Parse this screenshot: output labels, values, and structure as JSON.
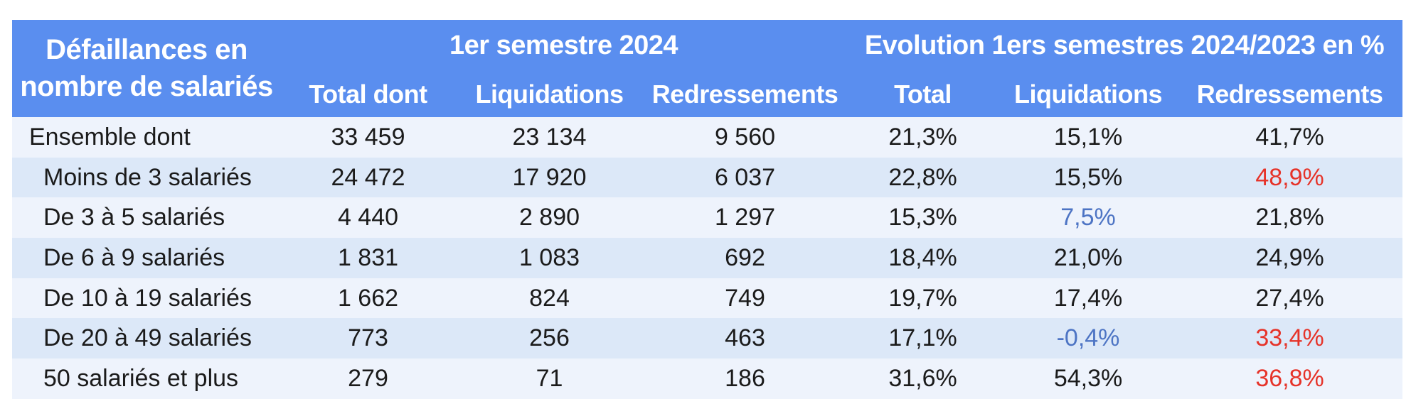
{
  "colors": {
    "header_bg": "#5a8eef",
    "header_text": "#ffffff",
    "row_light": "#eef3fc",
    "row_dark": "#dce8f8",
    "body_text": "#1b1b1b",
    "negative_highlight_red": "#e63329",
    "positive_highlight_blue": "#4d74c4"
  },
  "table": {
    "corner_title": "Défaillances en nombre de salariés",
    "groups": [
      {
        "label": "1er semestre 2024",
        "columns": [
          "Total dont",
          "Liquidations",
          "Redressements"
        ]
      },
      {
        "label": "Evolution 1ers semestres 2024/2023 en %",
        "columns": [
          "Total",
          "Liquidations",
          "Redressements"
        ]
      }
    ],
    "rows": [
      {
        "label": "Ensemble dont",
        "indent": false,
        "values": [
          "33 459",
          "23 134",
          "9 560",
          "21,3%",
          "15,1%",
          "41,7%"
        ],
        "value_colors": [
          "",
          "",
          "",
          "",
          "",
          ""
        ]
      },
      {
        "label": "Moins de 3 salariés",
        "indent": true,
        "values": [
          "24 472",
          "17 920",
          "6 037",
          "22,8%",
          "15,5%",
          "48,9%"
        ],
        "value_colors": [
          "",
          "",
          "",
          "",
          "",
          "red"
        ]
      },
      {
        "label": "De 3 à 5 salariés",
        "indent": true,
        "values": [
          "4 440",
          "2 890",
          "1 297",
          "15,3%",
          "7,5%",
          "21,8%"
        ],
        "value_colors": [
          "",
          "",
          "",
          "",
          "blue",
          ""
        ]
      },
      {
        "label": "De 6 à 9 salariés",
        "indent": true,
        "values": [
          "1 831",
          "1 083",
          "692",
          "18,4%",
          "21,0%",
          "24,9%"
        ],
        "value_colors": [
          "",
          "",
          "",
          "",
          "",
          ""
        ]
      },
      {
        "label": "De 10 à 19 salariés",
        "indent": true,
        "values": [
          "1 662",
          "824",
          "749",
          "19,7%",
          "17,4%",
          "27,4%"
        ],
        "value_colors": [
          "",
          "",
          "",
          "",
          "",
          ""
        ]
      },
      {
        "label": "De 20 à 49 salariés",
        "indent": true,
        "values": [
          "773",
          "256",
          "463",
          "17,1%",
          "-0,4%",
          "33,4%"
        ],
        "value_colors": [
          "",
          "",
          "",
          "",
          "blue",
          "red"
        ]
      },
      {
        "label": "50 salariés et plus",
        "indent": true,
        "values": [
          "279",
          "71",
          "186",
          "31,6%",
          "54,3%",
          "36,8%"
        ],
        "value_colors": [
          "",
          "",
          "",
          "",
          "",
          "red"
        ]
      }
    ]
  },
  "chart_data": {
    "type": "table",
    "title": "Défaillances en nombre de salariés",
    "column_groups": [
      "1er semestre 2024",
      "Evolution 1ers semestres 2024/2023 en %"
    ],
    "columns": [
      "Total dont",
      "Liquidations",
      "Redressements",
      "Total",
      "Liquidations",
      "Redressements"
    ],
    "rows": [
      {
        "label": "Ensemble dont",
        "semestre_2024": {
          "total": 33459,
          "liquidations": 23134,
          "redressements": 9560
        },
        "evolution_pct": {
          "total": 21.3,
          "liquidations": 15.1,
          "redressements": 41.7
        }
      },
      {
        "label": "Moins de 3 salariés",
        "semestre_2024": {
          "total": 24472,
          "liquidations": 17920,
          "redressements": 6037
        },
        "evolution_pct": {
          "total": 22.8,
          "liquidations": 15.5,
          "redressements": 48.9
        }
      },
      {
        "label": "De 3 à 5 salariés",
        "semestre_2024": {
          "total": 4440,
          "liquidations": 2890,
          "redressements": 1297
        },
        "evolution_pct": {
          "total": 15.3,
          "liquidations": 7.5,
          "redressements": 21.8
        }
      },
      {
        "label": "De 6 à 9 salariés",
        "semestre_2024": {
          "total": 1831,
          "liquidations": 1083,
          "redressements": 692
        },
        "evolution_pct": {
          "total": 18.4,
          "liquidations": 21.0,
          "redressements": 24.9
        }
      },
      {
        "label": "De 10 à 19 salariés",
        "semestre_2024": {
          "total": 1662,
          "liquidations": 824,
          "redressements": 749
        },
        "evolution_pct": {
          "total": 19.7,
          "liquidations": 17.4,
          "redressements": 27.4
        }
      },
      {
        "label": "De 20 à 49 salariés",
        "semestre_2024": {
          "total": 773,
          "liquidations": 256,
          "redressements": 463
        },
        "evolution_pct": {
          "total": 17.1,
          "liquidations": -0.4,
          "redressements": 33.4
        }
      },
      {
        "label": "50 salariés et plus",
        "semestre_2024": {
          "total": 279,
          "liquidations": 71,
          "redressements": 186
        },
        "evolution_pct": {
          "total": 31.6,
          "liquidations": 54.3,
          "redressements": 36.8
        }
      }
    ]
  }
}
